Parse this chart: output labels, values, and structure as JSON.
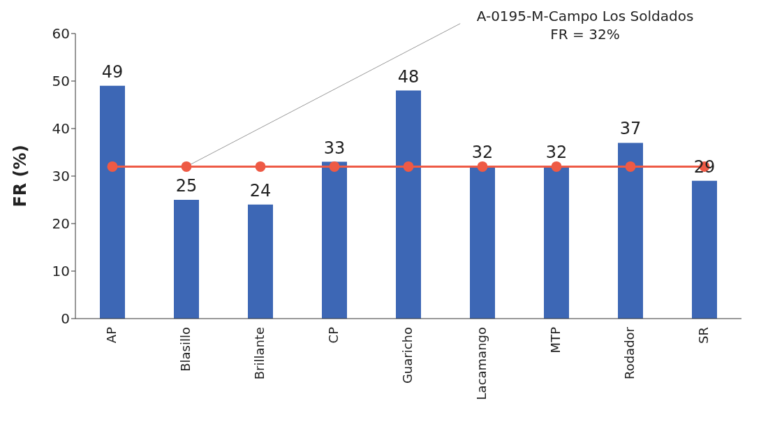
{
  "chart_data": {
    "type": "bar",
    "ylabel": "FR (%)",
    "categories": [
      "AP",
      "Blasillo",
      "Brillante",
      "CP",
      "Guaricho",
      "Lacamango",
      "MTP",
      "Rodador",
      "SR"
    ],
    "series": [
      {
        "color": "#3d67b5",
        "values": [
          49,
          25,
          24,
          33,
          48,
          32,
          32,
          37,
          29
        ],
        "value_labels": [
          "49",
          "25",
          "24",
          "33",
          "48",
          "32",
          "32",
          "37",
          "29"
        ]
      },
      {
        "type": "line",
        "color": "#ee5a45",
        "values": [
          32,
          32,
          32,
          32,
          32,
          32,
          32,
          32,
          32
        ],
        "marker": "circle",
        "line_style": "solid"
      }
    ],
    "ylim": [
      0,
      60
    ],
    "yticks": [
      0,
      10,
      20,
      30,
      40,
      50,
      60
    ],
    "grid": false,
    "legend": false,
    "annotations": [
      {
        "text": "A-0195-M-Campo Los Soldados",
        "x": "Blasillo",
        "y": 32
      },
      "FR = 32%"
    ]
  }
}
